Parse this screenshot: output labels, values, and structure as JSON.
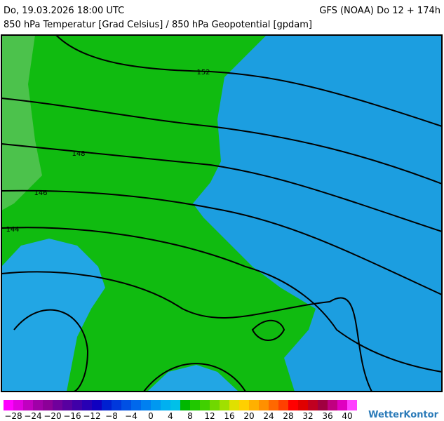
{
  "header": {
    "date": "Do, 19.03.2026 18:00 UTC",
    "model": "GFS (NOAA) Do 12 + 174h",
    "subtitle": "850 hPa Temperatur [Grad Celsius] / 850 hPa Geopotential [gpdam]"
  },
  "map": {
    "contour_labels": [
      "152",
      "148",
      "146",
      "144"
    ]
  },
  "colorbar": {
    "labels": [
      "−28",
      "−24",
      "−20",
      "−16",
      "−12",
      "−8",
      "−4",
      "0",
      "4",
      "8",
      "12",
      "16",
      "20",
      "24",
      "28",
      "32",
      "36",
      "40"
    ],
    "colors": [
      "#ff00ff",
      "#e000e0",
      "#c000c0",
      "#a000a8",
      "#8c0098",
      "#70009c",
      "#5800a0",
      "#4000a8",
      "#2800b4",
      "#1000c0",
      "#0020d0",
      "#0038dc",
      "#0050e4",
      "#0068ec",
      "#0080f0",
      "#0098f0",
      "#00b0f0",
      "#00c0e8",
      "#00b800",
      "#20c800",
      "#40d000",
      "#70d800",
      "#a0e000",
      "#e0e000",
      "#ffd000",
      "#ffb000",
      "#ff9000",
      "#ff6800",
      "#ff4000",
      "#ff0000",
      "#e00000",
      "#c00020",
      "#a00040",
      "#c00080",
      "#e000c0",
      "#ff40ff"
    ]
  },
  "footer": {
    "logo": "WetterKontor"
  }
}
